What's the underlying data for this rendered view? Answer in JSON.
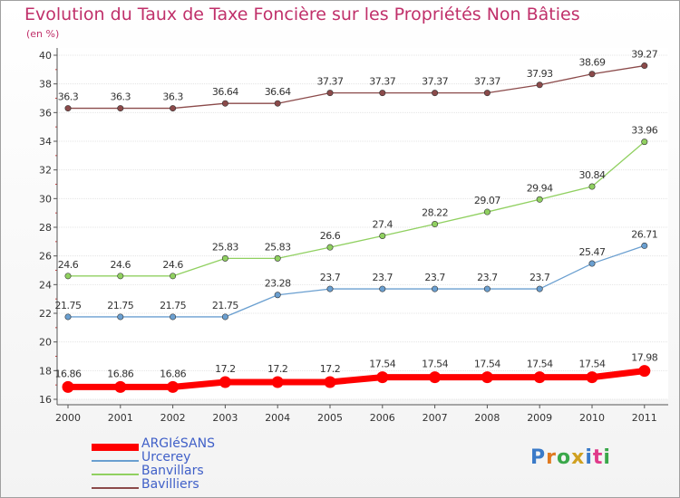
{
  "title": "Evolution du Taux de Taxe Foncière sur les Propriétés Non Bâties",
  "unit_label": "(en %)",
  "logo_text": "Proxiti",
  "chart_data": {
    "type": "line",
    "title": "Evolution du Taux de Taxe Foncière sur les Propriétés Non Bâties",
    "ylabel": "(en %)",
    "xlabel": "",
    "x": [
      "2000",
      "2001",
      "2002",
      "2003",
      "2004",
      "2005",
      "2006",
      "2007",
      "2008",
      "2009",
      "2010",
      "2011"
    ],
    "ylim": [
      16,
      40
    ],
    "yticks": [
      "16",
      "18",
      "20",
      "22",
      "24",
      "26",
      "28",
      "30",
      "32",
      "34",
      "36",
      "38",
      "40"
    ],
    "grid": "horizontal",
    "legend_position": "bottom-left",
    "series": [
      {
        "name": "ARGIéSANS",
        "color": "#ff0000",
        "values": [
          16.86,
          16.86,
          16.86,
          17.2,
          17.2,
          17.2,
          17.54,
          17.54,
          17.54,
          17.54,
          17.54,
          17.98
        ],
        "labels": [
          "16.86",
          "16.86",
          "16.86",
          "17.2",
          "17.2",
          "17.2",
          "17.54",
          "17.54",
          "17.54",
          "17.54",
          "17.54",
          "17.98"
        ]
      },
      {
        "name": "Urcerey",
        "color": "#6a9fd0",
        "values": [
          21.75,
          21.75,
          21.75,
          21.75,
          23.28,
          23.7,
          23.7,
          23.7,
          23.7,
          23.7,
          25.47,
          26.71
        ],
        "labels": [
          "21.75",
          "21.75",
          "21.75",
          "21.75",
          "23.28",
          "23.7",
          "23.7",
          "23.7",
          "23.7",
          "23.7",
          "25.47",
          "26.71"
        ]
      },
      {
        "name": "Banvillars",
        "color": "#90d060",
        "values": [
          24.6,
          24.6,
          24.6,
          25.83,
          25.83,
          26.6,
          27.4,
          28.22,
          29.07,
          29.94,
          30.84,
          33.96
        ],
        "labels": [
          "24.6",
          "24.6",
          "24.6",
          "25.83",
          "25.83",
          "26.6",
          "27.4",
          "28.22",
          "29.07",
          "29.94",
          "30.84",
          "33.96"
        ]
      },
      {
        "name": "Bavilliers",
        "color": "#8b4a4a",
        "values": [
          36.3,
          36.3,
          36.3,
          36.64,
          36.64,
          37.37,
          37.37,
          37.37,
          37.37,
          37.93,
          38.69,
          39.27
        ],
        "labels": [
          "36.3",
          "36.3",
          "36.3",
          "36.64",
          "36.64",
          "37.37",
          "37.37",
          "37.37",
          "37.37",
          "37.93",
          "38.69",
          "39.27"
        ]
      }
    ]
  }
}
